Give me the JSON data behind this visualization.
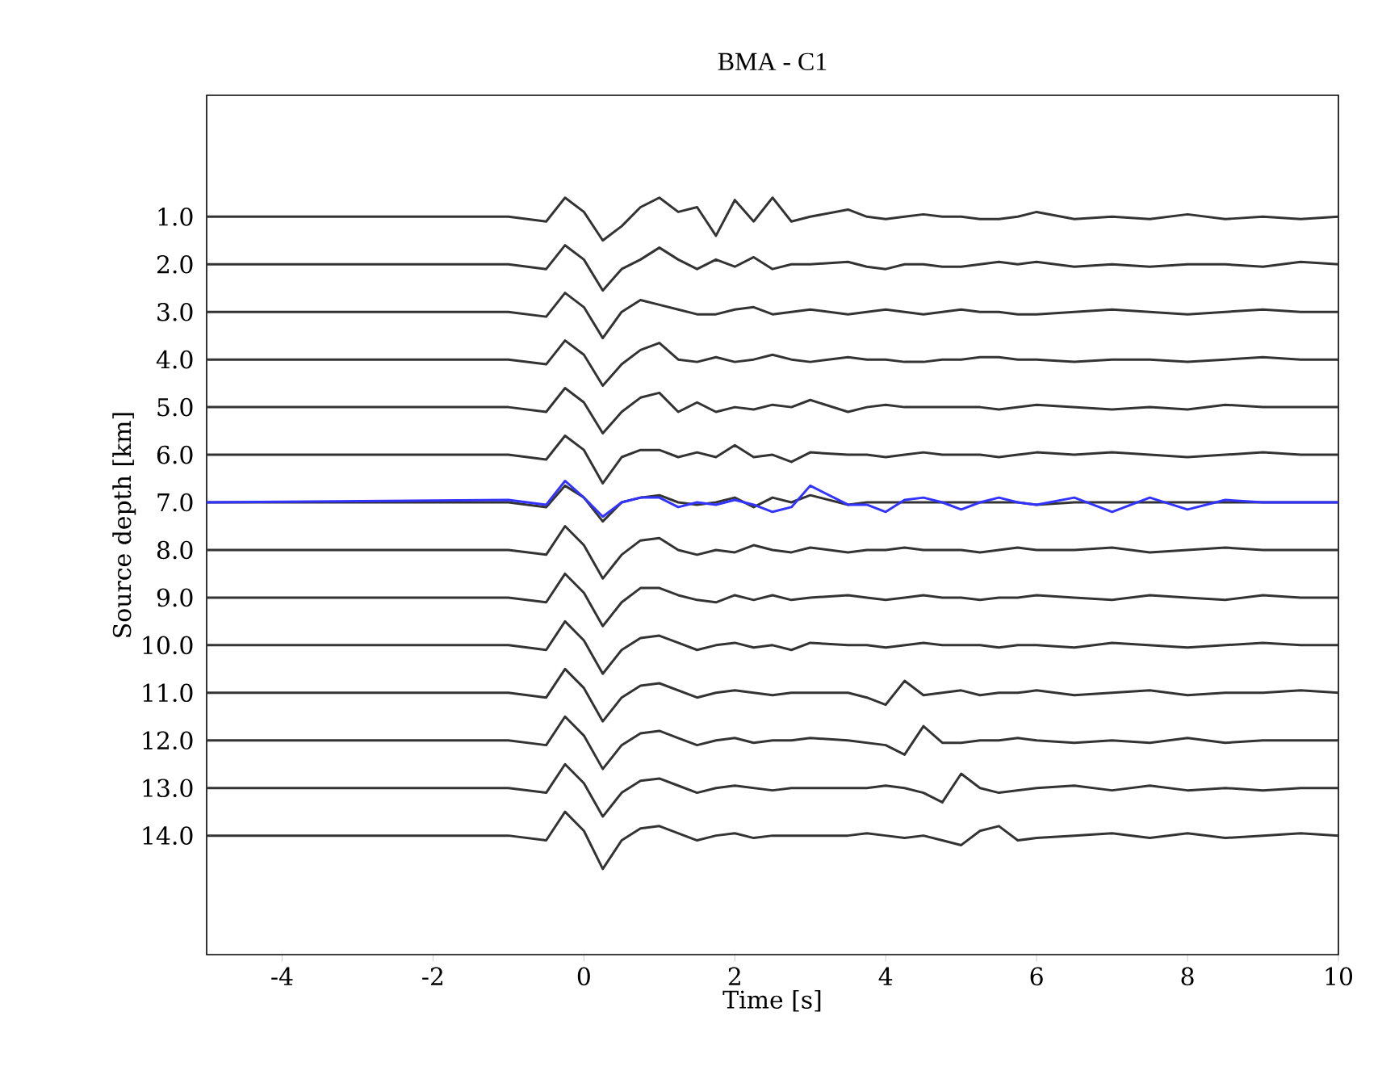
{
  "chart_data": {
    "type": "line",
    "title": "BMA -  C1",
    "xlabel": "Time [s]",
    "ylabel": "Source depth [km]",
    "xlim": [
      -5,
      10
    ],
    "ylim": [
      16.5,
      -1.55
    ],
    "xticks": [
      -4,
      -2,
      0,
      2,
      4,
      6,
      8,
      10
    ],
    "yticks": [
      {
        "value": 1,
        "label": "1.0"
      },
      {
        "value": 2,
        "label": "2.0"
      },
      {
        "value": 3,
        "label": "3.0"
      },
      {
        "value": 4,
        "label": "4.0"
      },
      {
        "value": 5,
        "label": "5.0"
      },
      {
        "value": 6,
        "label": "6.0"
      },
      {
        "value": 7,
        "label": "7.0"
      },
      {
        "value": 8,
        "label": "8.0"
      },
      {
        "value": 9,
        "label": "9.0"
      },
      {
        "value": 10,
        "label": "10.0"
      },
      {
        "value": 11,
        "label": "11.0"
      },
      {
        "value": 12,
        "label": "12.0"
      },
      {
        "value": 13,
        "label": "13.0"
      },
      {
        "value": 14,
        "label": "14.0"
      }
    ],
    "marker": "none",
    "line_style": "solid",
    "x": [
      -5,
      -1,
      -0.5,
      -0.25,
      0,
      0.25,
      0.5,
      0.75,
      1,
      1.25,
      1.5,
      1.75,
      2,
      2.25,
      2.5,
      2.75,
      3,
      3.5,
      3.75,
      4,
      4.25,
      4.5,
      4.75,
      5,
      5.25,
      5.5,
      5.75,
      6,
      6.5,
      7,
      7.5,
      8,
      8.5,
      9,
      9.5,
      10
    ],
    "series": [
      {
        "color": "#333333",
        "values": [
          1,
          1,
          1.1,
          0.6,
          0.9,
          1.5,
          1.2,
          0.8,
          0.6,
          0.9,
          0.8,
          1.4,
          0.65,
          1.1,
          0.6,
          1.1,
          1,
          0.85,
          1,
          1.05,
          1,
          0.95,
          1,
          1,
          1.05,
          1.05,
          1,
          0.9,
          1.05,
          1,
          1.05,
          0.95,
          1.05,
          1,
          1.05,
          1
        ]
      },
      {
        "color": "#333333",
        "values": [
          2,
          2,
          2.1,
          1.6,
          1.9,
          2.55,
          2.1,
          1.9,
          1.65,
          1.9,
          2.1,
          1.9,
          2.05,
          1.85,
          2.1,
          2,
          2,
          1.95,
          2.05,
          2.1,
          2,
          2,
          2.05,
          2.05,
          2,
          1.95,
          2,
          1.95,
          2.05,
          2,
          2.05,
          2,
          2,
          2.05,
          1.95,
          2
        ]
      },
      {
        "color": "#333333",
        "values": [
          3,
          3,
          3.1,
          2.6,
          2.9,
          3.55,
          3,
          2.75,
          2.85,
          2.95,
          3.05,
          3.05,
          2.95,
          2.9,
          3.05,
          3,
          2.95,
          3.05,
          3,
          2.95,
          3,
          3.05,
          3,
          2.95,
          3,
          3,
          3.05,
          3.05,
          3,
          2.95,
          3,
          3.05,
          3,
          2.95,
          3,
          3
        ]
      },
      {
        "color": "#333333",
        "values": [
          4,
          4,
          4.1,
          3.6,
          3.9,
          4.55,
          4.1,
          3.8,
          3.65,
          4,
          4.05,
          3.95,
          4.05,
          4,
          3.9,
          4,
          4.05,
          3.95,
          4,
          4,
          4.05,
          4.05,
          4,
          4,
          3.95,
          3.95,
          4,
          4,
          4.05,
          4,
          4,
          4.05,
          4,
          3.95,
          4,
          4
        ]
      },
      {
        "color": "#333333",
        "values": [
          5,
          5,
          5.1,
          4.6,
          4.9,
          5.55,
          5.1,
          4.8,
          4.7,
          5.1,
          4.9,
          5.1,
          5,
          5.05,
          4.95,
          5,
          4.85,
          5.1,
          5,
          4.95,
          5,
          5,
          5,
          5,
          5,
          5.05,
          5,
          4.95,
          5,
          5.05,
          5,
          5.05,
          4.95,
          5,
          5,
          5
        ]
      },
      {
        "color": "#333333",
        "values": [
          6,
          6,
          6.1,
          5.6,
          5.9,
          6.6,
          6.05,
          5.9,
          5.9,
          6.05,
          5.95,
          6.05,
          5.8,
          6.05,
          6,
          6.15,
          5.95,
          6,
          6,
          6.05,
          6,
          5.95,
          6,
          6,
          6,
          6.05,
          6,
          5.95,
          6,
          5.95,
          6,
          6.05,
          6,
          5.95,
          6,
          6
        ]
      },
      {
        "color": "#333333",
        "values": [
          7,
          7,
          7.1,
          6.65,
          6.9,
          7.4,
          7,
          6.9,
          6.85,
          7,
          7.05,
          7,
          6.9,
          7.1,
          6.9,
          7,
          6.85,
          7.05,
          7,
          7,
          7,
          7,
          7,
          7,
          7,
          7,
          7,
          7.05,
          7,
          7,
          7,
          7,
          7,
          null,
          null,
          7
        ]
      },
      {
        "color": "#3333ff",
        "values": [
          7,
          6.95,
          7.05,
          6.55,
          6.9,
          7.3,
          7,
          6.9,
          6.9,
          7.1,
          7,
          7.05,
          6.95,
          7.05,
          7.2,
          7.1,
          6.65,
          7.05,
          7.05,
          7.2,
          6.95,
          6.9,
          7,
          7.15,
          7,
          6.9,
          7,
          7.05,
          6.9,
          7.2,
          6.9,
          7.15,
          6.95,
          7,
          7,
          7
        ]
      },
      {
        "color": "#333333",
        "values": [
          8,
          8,
          8.1,
          7.5,
          7.9,
          8.6,
          8.1,
          7.8,
          7.75,
          8,
          8.1,
          8,
          8.05,
          7.9,
          8,
          8.05,
          7.95,
          8.05,
          8,
          8,
          7.95,
          8,
          8,
          8,
          8.05,
          8,
          7.95,
          8,
          8,
          7.95,
          8.05,
          8,
          7.95,
          8,
          8,
          8
        ]
      },
      {
        "color": "#333333",
        "values": [
          9,
          9,
          9.1,
          8.5,
          8.9,
          9.6,
          9.1,
          8.8,
          8.8,
          8.95,
          9.05,
          9.1,
          8.95,
          9.05,
          8.95,
          9.05,
          9,
          8.95,
          9,
          9.05,
          9,
          8.95,
          9,
          9,
          9.05,
          9,
          9,
          8.95,
          9,
          9.05,
          8.95,
          9,
          9.05,
          8.95,
          9,
          9
        ]
      },
      {
        "color": "#333333",
        "values": [
          10,
          10,
          10.1,
          9.5,
          9.9,
          10.6,
          10.1,
          9.85,
          9.8,
          9.95,
          10.1,
          10,
          9.95,
          10.05,
          10,
          10.1,
          9.95,
          10,
          10,
          10.05,
          10,
          9.95,
          10,
          10,
          10,
          10.05,
          10,
          10,
          10.05,
          9.95,
          10,
          10.05,
          10,
          9.95,
          10,
          10
        ]
      },
      {
        "color": "#333333",
        "values": [
          11,
          11,
          11.1,
          10.5,
          10.9,
          11.6,
          11.1,
          10.85,
          10.8,
          10.95,
          11.1,
          11,
          10.95,
          11,
          11.05,
          11,
          11,
          11,
          11.1,
          11.25,
          10.75,
          11.05,
          11,
          10.95,
          11.05,
          11,
          11,
          10.95,
          11.05,
          11,
          10.95,
          11.05,
          11,
          11,
          10.95,
          11
        ]
      },
      {
        "color": "#333333",
        "values": [
          12,
          12,
          12.1,
          11.5,
          11.9,
          12.6,
          12.1,
          11.85,
          11.8,
          11.95,
          12.1,
          12,
          11.95,
          12.05,
          12,
          12,
          11.95,
          12,
          12.05,
          12.1,
          12.3,
          11.7,
          12.05,
          12.05,
          12,
          12,
          11.95,
          12,
          12.05,
          12,
          12.05,
          11.95,
          12.05,
          12,
          12,
          12
        ]
      },
      {
        "color": "#333333",
        "values": [
          13,
          13,
          13.1,
          12.5,
          12.9,
          13.6,
          13.1,
          12.85,
          12.8,
          12.95,
          13.1,
          13,
          12.95,
          13,
          13.05,
          13,
          13,
          13,
          13,
          12.95,
          13,
          13.1,
          13.3,
          12.7,
          13,
          13.1,
          13.05,
          13,
          12.95,
          13.05,
          12.95,
          13.05,
          13,
          13.05,
          13,
          13
        ]
      },
      {
        "color": "#333333",
        "values": [
          14,
          14,
          14.1,
          13.5,
          13.9,
          14.7,
          14.1,
          13.85,
          13.8,
          13.95,
          14.1,
          14,
          13.95,
          14.05,
          14,
          14,
          14,
          14,
          13.95,
          14,
          14.05,
          14,
          14.1,
          14.2,
          13.9,
          13.8,
          14.1,
          14.05,
          14,
          13.95,
          14.05,
          13.95,
          14.05,
          14,
          13.95,
          14
        ]
      }
    ]
  }
}
